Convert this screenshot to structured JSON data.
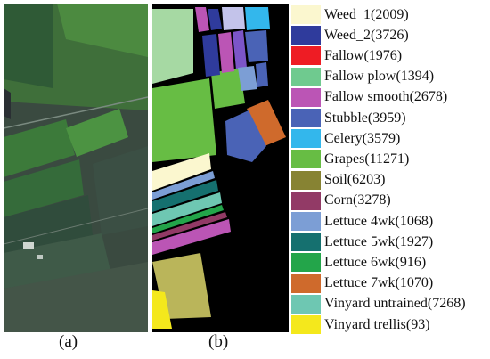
{
  "captions": {
    "a": "(a)",
    "b": "(b)"
  },
  "legend": {
    "items": [
      {
        "label": "Weed_1(2009)",
        "color": "#fbf7cf"
      },
      {
        "label": "Weed_2(3726)",
        "color": "#2f3b9c"
      },
      {
        "label": "Fallow(1976)",
        "color": "#ee1c24"
      },
      {
        "label": "Fallow plow(1394)",
        "color": "#6fca8f"
      },
      {
        "label": "Fallow smooth(2678)",
        "color": "#bb55b5"
      },
      {
        "label": "Stubble(3959)",
        "color": "#4a63b6"
      },
      {
        "label": "Celery(3579)",
        "color": "#33b7ec"
      },
      {
        "label": "Grapes(11271)",
        "color": "#67bd44"
      },
      {
        "label": "Soil(6203)",
        "color": "#878333"
      },
      {
        "label": "Corn(3278)",
        "color": "#923a66"
      },
      {
        "label": "Lettuce 4wk(1068)",
        "color": "#7c9ed5"
      },
      {
        "label": "Lettuce 5wk(1927)",
        "color": "#15706f"
      },
      {
        "label": "Lettuce 6wk(916)",
        "color": "#23a54a"
      },
      {
        "label": "Lettuce 7wk(1070)",
        "color": "#cf6a2c"
      },
      {
        "label": "Vinyard untrained(7268)",
        "color": "#6ec7b2"
      },
      {
        "label": "Vinyard trellis(93)",
        "color": "#f4e81c"
      }
    ]
  }
}
